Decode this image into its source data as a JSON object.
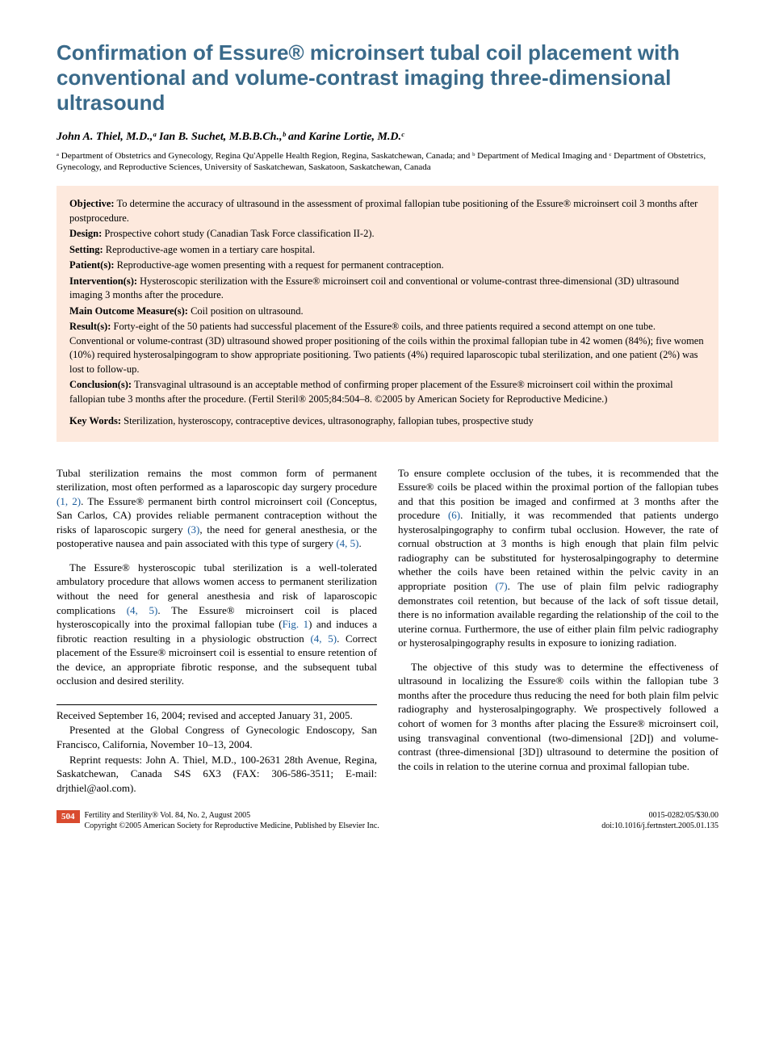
{
  "title": "Confirmation of Essure® microinsert tubal coil placement with conventional and volume-contrast imaging three-dimensional ultrasound",
  "authors": "John A. Thiel, M.D.,ᵃ Ian B. Suchet, M.B.B.Ch.,ᵇ and Karine Lortie, M.D.ᶜ",
  "affiliations": "ᵃ Department of Obstetrics and Gynecology, Regina Qu'Appelle Health Region, Regina, Saskatchewan, Canada; and ᵇ Department of Medical Imaging and ᶜ Department of Obstetrics, Gynecology, and Reproductive Sciences, University of Saskatchewan, Saskatoon, Saskatchewan, Canada",
  "abstract": {
    "objective": "To determine the accuracy of ultrasound in the assessment of proximal fallopian tube positioning of the Essure® microinsert coil 3 months after postprocedure.",
    "design": "Prospective cohort study (Canadian Task Force classification II-2).",
    "setting": "Reproductive-age women in a tertiary care hospital.",
    "patients": "Reproductive-age women presenting with a request for permanent contraception.",
    "interventions": "Hysteroscopic sterilization with the Essure® microinsert coil and conventional or volume-contrast three-dimensional (3D) ultrasound imaging 3 months after the procedure.",
    "outcome": "Coil position on ultrasound.",
    "results": "Forty-eight of the 50 patients had successful placement of the Essure® coils, and three patients required a second attempt on one tube. Conventional or volume-contrast (3D) ultrasound showed proper positioning of the coils within the proximal fallopian tube in 42 women (84%); five women (10%) required hysterosalpingogram to show appropriate positioning. Two patients (4%) required laparoscopic tubal sterilization, and one patient (2%) was lost to follow-up.",
    "conclusions": "Transvaginal ultrasound is an acceptable method of confirming proper placement of the Essure® microinsert coil within the proximal fallopian tube 3 months after the procedure. (Fertil Steril® 2005;84:504–8. ©2005 by American Society for Reproductive Medicine.)",
    "keywords": "Sterilization, hysteroscopy, contraceptive devices, ultrasonography, fallopian tubes, prospective study"
  },
  "labels": {
    "objective": "Objective:",
    "design": "Design:",
    "setting": "Setting:",
    "patients": "Patient(s):",
    "interventions": "Intervention(s):",
    "outcome": "Main Outcome Measure(s):",
    "results": "Result(s):",
    "conclusions": "Conclusion(s):",
    "keywords": "Key Words:"
  },
  "body": {
    "p1a": "Tubal sterilization remains the most common form of permanent sterilization, most often performed as a laparoscopic day surgery procedure ",
    "p1_ref1": "(1, 2)",
    "p1b": ". The Essure® permanent birth control microinsert coil (Conceptus, San Carlos, CA) provides reliable permanent contraception without the risks of laparoscopic surgery ",
    "p1_ref2": "(3)",
    "p1c": ", the need for general anesthesia, or the postoperative nausea and pain associated with this type of surgery ",
    "p1_ref3": "(4, 5)",
    "p1d": ".",
    "p2a": "The Essure® hysteroscopic tubal sterilization is a well-tolerated ambulatory procedure that allows women access to permanent sterilization without the need for general anesthesia and risk of laparoscopic complications ",
    "p2_ref1": "(4, 5)",
    "p2b": ". The Essure® microinsert coil is placed hysteroscopically into the proximal fallopian tube (",
    "p2_fig": "Fig. 1",
    "p2c": ") and induces a fibrotic reaction resulting in a physiologic obstruction ",
    "p2_ref2": "(4, 5)",
    "p2d": ". Correct placement of the Essure® microinsert coil is essential to ensure retention of the device, an appropriate fibrotic response, and the subsequent tubal occlusion and desired sterility.",
    "p3a": "To ensure complete occlusion of the tubes, it is recommended that the Essure® coils be placed within the proximal portion of the fallopian tubes and that this position be imaged and confirmed at 3 months after the procedure ",
    "p3_ref1": "(6)",
    "p3b": ". Initially, it was recommended that patients undergo hysterosalpingography to confirm tubal occlusion. However, the rate of cornual obstruction at 3 months is high enough that plain film pelvic radiography can be substituted for hysterosalpingography to determine whether the coils have been retained within the pelvic cavity in an appropriate position ",
    "p3_ref2": "(7)",
    "p3c": ". The use of plain film pelvic radiography demonstrates coil retention, but because of the lack of soft tissue detail, there is no information available regarding the relationship of the coil to the uterine cornua. Furthermore, the use of either plain film pelvic radiography or hysterosalpingography results in exposure to ionizing radiation.",
    "p4": "The objective of this study was to determine the effectiveness of ultrasound in localizing the Essure® coils within the fallopian tube 3 months after the procedure thus reducing the need for both plain film pelvic radiography and hysterosalpingography. We prospectively followed a cohort of women for 3 months after placing the Essure® microinsert coil, using transvaginal conventional (two-dimensional [2D]) and volume-contrast (three-dimensional [3D]) ultrasound to determine the position of the coils in relation to the uterine cornua and proximal fallopian tube."
  },
  "footnotes": {
    "received": "Received September 16, 2004; revised and accepted January 31, 2005.",
    "presented": "Presented at the Global Congress of Gynecologic Endoscopy, San Francisco, California, November 10–13, 2004.",
    "reprint": "Reprint requests: John A. Thiel, M.D., 100-2631 28th Avenue, Regina, Saskatchewan, Canada S4S 6X3 (FAX: 306-586-3511; E-mail: drjthiel@aol.com)."
  },
  "footer": {
    "page": "504",
    "journal": "Fertility and Sterility® Vol. 84, No. 2, August 2005",
    "copyright": "Copyright ©2005 American Society for Reproductive Medicine, Published by Elsevier Inc.",
    "issn": "0015-0282/05/$30.00",
    "doi": "doi:10.1016/j.fertnstert.2005.01.135"
  },
  "colors": {
    "title": "#3a6a8a",
    "abstract_bg": "#fde9dd",
    "link": "#1a5c9c",
    "page_badge": "#d94b2f"
  }
}
